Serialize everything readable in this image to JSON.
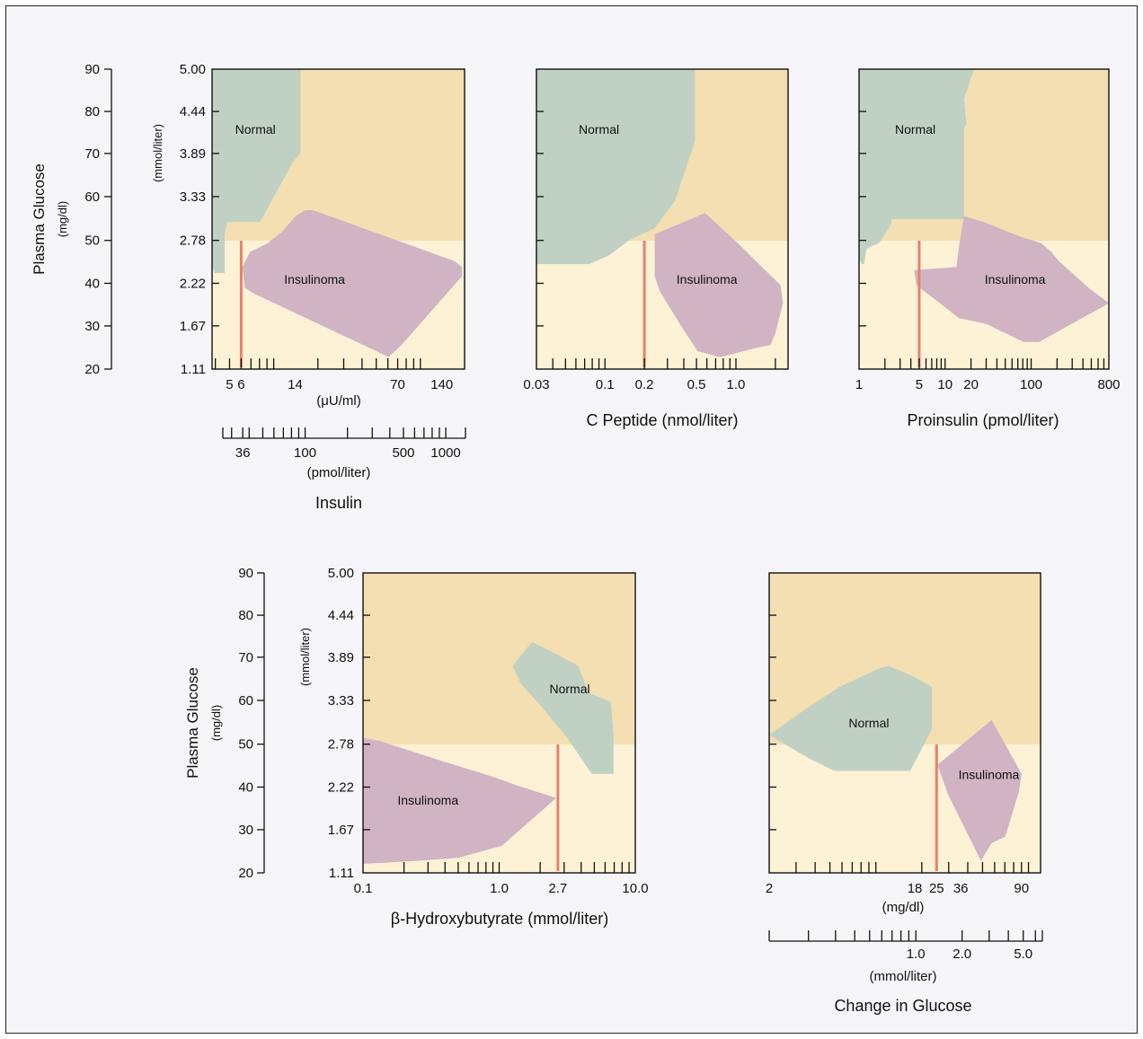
{
  "colors": {
    "panel_background": "#fdf2d6",
    "above_threshold_band": "#f3dfb1",
    "normal": "#c0d1c4",
    "insulinoma": "#d1b4c3",
    "threshold_line": "#e8806c",
    "figure_background": "#f5f5fa"
  },
  "left_axes": {
    "mgdl_ticks": [
      "90",
      "80",
      "70",
      "60",
      "50",
      "40",
      "30",
      "20"
    ],
    "mmol_ticks": [
      "5.00",
      "4.44",
      "3.89",
      "3.33",
      "2.78",
      "2.22",
      "1.67",
      "1.11"
    ],
    "plasma_glucose_label": "Plasma Glucose",
    "mgdl_unit": "(mg/dl)",
    "mmol_unit": "(mmol/liter)"
  },
  "chart_data": [
    {
      "id": "insulin",
      "type": "area",
      "title": "Insulin",
      "xlabel": "(μU/ml)",
      "x_scale": "log",
      "xlim": [
        3.8,
        200
      ],
      "ylabel": "Plasma Glucose (mg/dl)",
      "ylim": [
        20,
        90
      ],
      "y_ticks": [
        90,
        80,
        70,
        60,
        50,
        40,
        30,
        20
      ],
      "x_tick_labels": [
        "5",
        "6",
        "14",
        "70",
        "140"
      ],
      "secondary_axis": {
        "unit": "(pmol/liter)",
        "tick_labels": [
          "36",
          "100",
          "500",
          "1000"
        ]
      },
      "glucose_threshold_mgdl": 50,
      "threshold_line_x": 6,
      "regions": [
        {
          "name": "Normal",
          "label_at": [
            7.5,
            76
          ]
        },
        {
          "name": "Insulinoma",
          "label_at": [
            19,
            41
          ]
        }
      ]
    },
    {
      "id": "c_peptide",
      "type": "area",
      "title": "C Peptide (nmol/liter)",
      "x_scale": "log",
      "xlim": [
        0.03,
        2.5
      ],
      "ylabel": "Plasma Glucose (mg/dl)",
      "ylim": [
        20,
        90
      ],
      "x_tick_labels": [
        "0.03",
        "0.1",
        "0.2",
        "0.5",
        "1.0"
      ],
      "glucose_threshold_mgdl": 50,
      "threshold_line_x": 0.2,
      "regions": [
        {
          "name": "Normal",
          "label_at": [
            0.09,
            76
          ]
        },
        {
          "name": "Insulinoma",
          "label_at": [
            0.6,
            41
          ]
        }
      ]
    },
    {
      "id": "proinsulin",
      "type": "area",
      "title": "Proinsulin (pmol/liter)",
      "x_scale": "log",
      "xlim": [
        1,
        800
      ],
      "ylabel": "Plasma Glucose (mg/dl)",
      "ylim": [
        20,
        90
      ],
      "x_tick_labels": [
        "1",
        "5",
        "10",
        "20",
        "100",
        "800"
      ],
      "glucose_threshold_mgdl": 50,
      "threshold_line_x": 5,
      "regions": [
        {
          "name": "Normal",
          "label_at": [
            4.5,
            76
          ]
        },
        {
          "name": "Insulinoma",
          "label_at": [
            65,
            41
          ]
        }
      ]
    },
    {
      "id": "beta_hydroxybutyrate",
      "type": "area",
      "title": "β-Hydroxybutyrate (mmol/liter)",
      "x_scale": "log",
      "xlim": [
        0.1,
        10.0
      ],
      "ylabel": "Plasma Glucose (mg/dl)",
      "ylim": [
        20,
        90
      ],
      "x_tick_labels": [
        "0.1",
        "1.0",
        "2.7",
        "10.0"
      ],
      "glucose_threshold_mgdl": 50,
      "threshold_line_x": 2.7,
      "regions": [
        {
          "name": "Normal",
          "label_at": [
            3.3,
            63
          ]
        },
        {
          "name": "Insulinoma",
          "label_at": [
            0.3,
            37
          ]
        }
      ]
    },
    {
      "id": "change_in_glucose",
      "type": "area",
      "title": "Change in Glucose",
      "xlabel": "(mg/dl)",
      "x_scale": "log",
      "xlim": [
        2,
        120
      ],
      "ylabel": "Plasma Glucose (mg/dl)",
      "ylim": [
        20,
        90
      ],
      "x_tick_labels": [
        "2",
        "18",
        "25",
        "36",
        "90"
      ],
      "secondary_axis": {
        "unit": "(mmol/liter)",
        "tick_labels": [
          "1.0",
          "2.0",
          "5.0"
        ]
      },
      "glucose_threshold_mgdl": 50,
      "threshold_line_x": 25,
      "regions": [
        {
          "name": "Normal",
          "label_at": [
            9,
            55
          ]
        },
        {
          "name": "Insulinoma",
          "label_at": [
            55,
            43
          ]
        }
      ]
    }
  ]
}
